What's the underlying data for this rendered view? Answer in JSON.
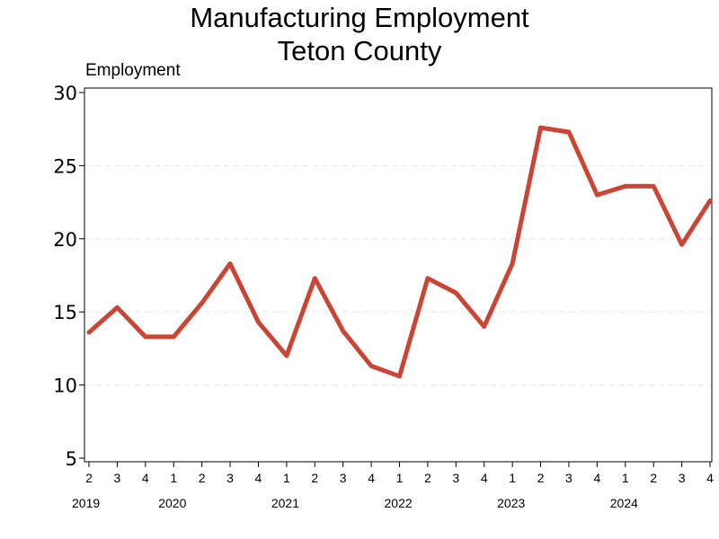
{
  "chart_data": {
    "type": "line",
    "title": [
      "Manufacturing Employment",
      "Teton County"
    ],
    "ylabel": "Employment",
    "ylim": [
      5,
      30
    ],
    "yticks": [
      5,
      10,
      15,
      20,
      25,
      30
    ],
    "grid": "horizontal dashed",
    "line_color": "#cc4433",
    "x_quarter_labels": [
      "2",
      "3",
      "4",
      "1",
      "2",
      "3",
      "4",
      "1",
      "2",
      "3",
      "4",
      "1",
      "2",
      "3",
      "4",
      "1",
      "2",
      "3",
      "4",
      "1",
      "2",
      "3",
      "4"
    ],
    "x_year_labels": [
      {
        "label": "2019",
        "index": 0
      },
      {
        "label": "2020",
        "index": 3
      },
      {
        "label": "2021",
        "index": 7
      },
      {
        "label": "2022",
        "index": 11
      },
      {
        "label": "2023",
        "index": 15
      },
      {
        "label": "2024",
        "index": 19
      }
    ],
    "series": [
      {
        "x": [
          "2019 Q2",
          "2019 Q3",
          "2019 Q4",
          "2020 Q1",
          "2020 Q2",
          "2020 Q3",
          "2020 Q4",
          "2021 Q1",
          "2021 Q2",
          "2021 Q3",
          "2021 Q4",
          "2022 Q1",
          "2022 Q2",
          "2022 Q3",
          "2022 Q4",
          "2023 Q1",
          "2023 Q2",
          "2023 Q3",
          "2023 Q4",
          "2024 Q1",
          "2024 Q2",
          "2024 Q3",
          "2024 Q4"
        ],
        "values": [
          13.6,
          15.3,
          13.3,
          13.3,
          15.6,
          18.3,
          14.3,
          12.0,
          17.3,
          13.7,
          11.3,
          10.6,
          17.3,
          16.3,
          14.0,
          18.3,
          27.6,
          27.3,
          23.0,
          23.6,
          23.6,
          19.6,
          22.6
        ]
      }
    ]
  }
}
